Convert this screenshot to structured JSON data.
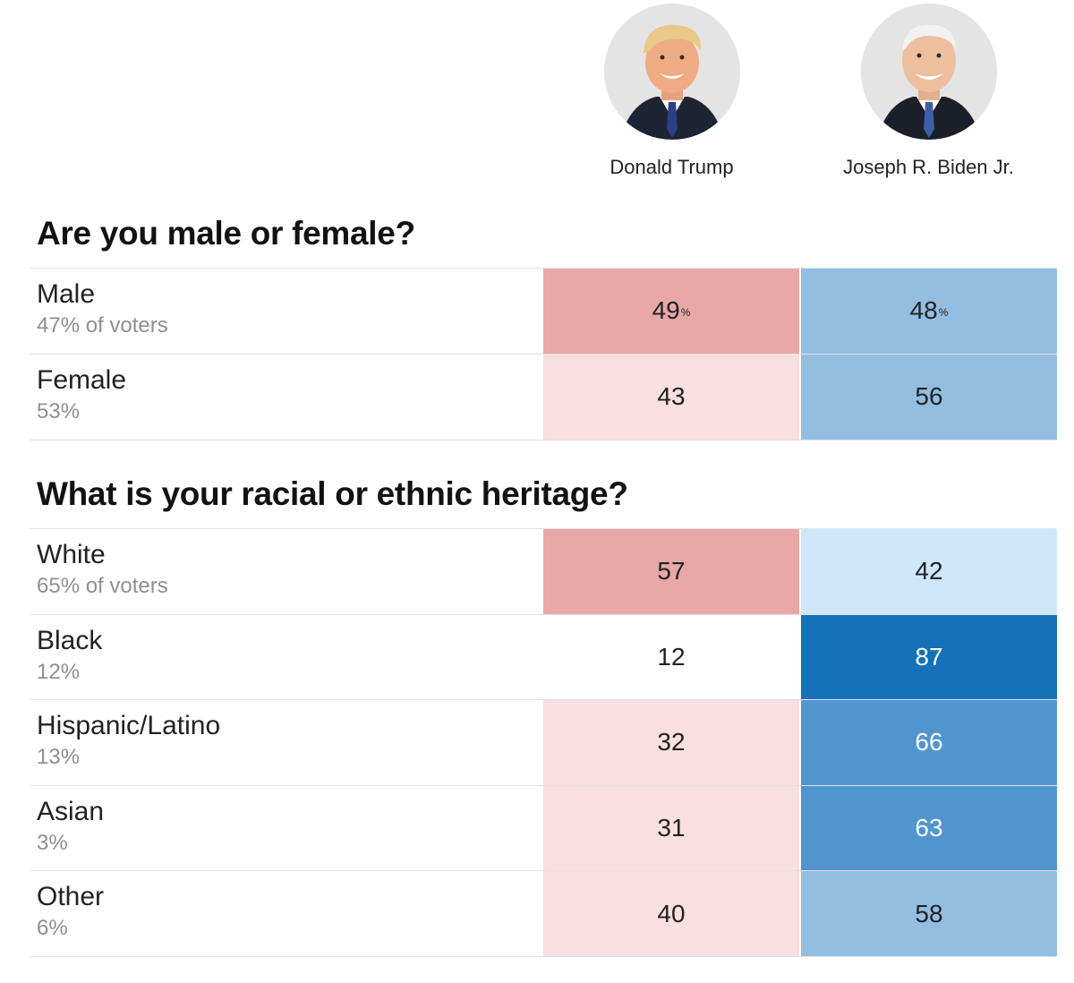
{
  "candidates": [
    {
      "name": "Donald Trump",
      "icon": "trump-portrait",
      "color": "#e8a8a7"
    },
    {
      "name": "Joseph R. Biden Jr.",
      "icon": "biden-portrait",
      "color": "#93bee2"
    }
  ],
  "chart_data": {
    "type": "table",
    "columns": [
      "Donald Trump",
      "Joseph R. Biden Jr."
    ],
    "sections": [
      {
        "question": "Are you male or female?",
        "rows": [
          {
            "label": "Male",
            "share": "47% of voters",
            "trump": "49",
            "biden": "48",
            "pct_mark": "%"
          },
          {
            "label": "Female",
            "share": "53%",
            "trump": "43",
            "biden": "56"
          }
        ]
      },
      {
        "question": "What is your racial or ethnic heritage?",
        "rows": [
          {
            "label": "White",
            "share": "65% of voters",
            "trump": "57",
            "biden": "42"
          },
          {
            "label": "Black",
            "share": "12%",
            "trump": "12",
            "biden": "87"
          },
          {
            "label": "Hispanic/Latino",
            "share": "13%",
            "trump": "32",
            "biden": "66"
          },
          {
            "label": "Asian",
            "share": "3%",
            "trump": "31",
            "biden": "63"
          },
          {
            "label": "Other",
            "share": "6%",
            "trump": "40",
            "biden": "58"
          }
        ]
      }
    ],
    "color_scale": {
      "trump": {
        "light": "#f9dfdf",
        "medium": "#e8a8a7",
        "none": "#ffffff"
      },
      "biden": {
        "light": "#cfe7fa",
        "medium": "#93bee2",
        "strong": "#5195cf",
        "strongest": "#1372b8"
      }
    }
  }
}
